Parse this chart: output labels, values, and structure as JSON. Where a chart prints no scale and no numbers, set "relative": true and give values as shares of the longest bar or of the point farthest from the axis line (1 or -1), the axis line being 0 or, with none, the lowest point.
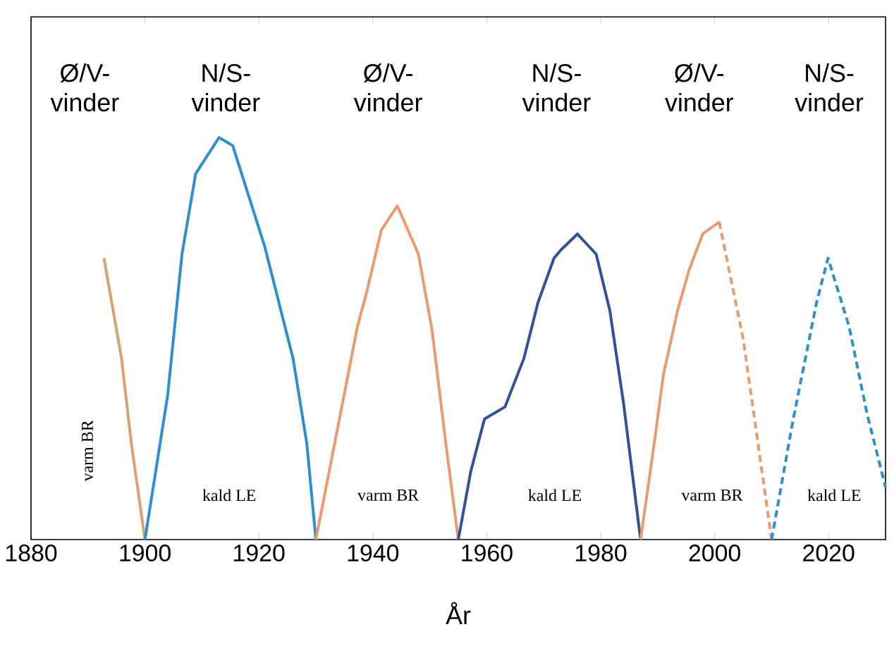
{
  "chart_data": {
    "type": "line",
    "relative": true,
    "xlabel": "År",
    "xlim": [
      1880,
      2030
    ],
    "xticks": [
      1880,
      1900,
      1920,
      1940,
      1960,
      1980,
      2000,
      2020
    ],
    "series": [
      {
        "color": "#d9a070",
        "x": [
          1892.8,
          1895.9,
          1897.6,
          1900
        ],
        "values": [
          0.7,
          0.45,
          0.24,
          0
        ]
      },
      {
        "color": "#2e8fcf",
        "x": [
          1900,
          1904,
          1906.5,
          1908.9,
          1913,
          1915.4,
          1921,
          1926,
          1928.4,
          1930
        ],
        "values": [
          0,
          0.36,
          0.71,
          0.91,
          1.0,
          0.98,
          0.73,
          0.45,
          0.24,
          0
        ]
      },
      {
        "color": "#eb9a6e",
        "x": [
          1930,
          1934,
          1937.3,
          1939,
          1941.5,
          1944.3,
          1948,
          1950.4,
          1952.8,
          1955
        ],
        "values": [
          0,
          0.29,
          0.53,
          0.62,
          0.77,
          0.83,
          0.71,
          0.52,
          0.24,
          0
        ]
      },
      {
        "color": "#34509a",
        "x": [
          1955,
          1957.2,
          1959.6,
          1963.2,
          1966.5,
          1969,
          1971.8,
          1973,
          1975.9,
          1979.2,
          1981.6,
          1984,
          1987
        ],
        "values": [
          0,
          0.17,
          0.3,
          0.33,
          0.45,
          0.59,
          0.7,
          0.72,
          0.76,
          0.71,
          0.57,
          0.34,
          0
        ]
      },
      {
        "color": "#eb9a6e",
        "x": [
          1987,
          1989.4,
          1991,
          1993.5,
          1995.5,
          1997.9,
          2000.8
        ],
        "values": [
          0,
          0.24,
          0.41,
          0.57,
          0.67,
          0.76,
          0.79
        ]
      },
      {
        "color": "#eb9a6e",
        "line_style": "dashed",
        "x": [
          2000.8,
          2005,
          2010
        ],
        "values": [
          0.79,
          0.5,
          0
        ]
      },
      {
        "color": "#2e8fcf",
        "line_style": "dashed",
        "x": [
          2010,
          2013.8,
          2017.9,
          2019.9,
          2023.6,
          2026.8,
          2030
        ],
        "values": [
          0,
          0.3,
          0.59,
          0.7,
          0.53,
          0.31,
          0.13
        ]
      }
    ],
    "annotations": [
      "Ø/V-vinder",
      "N/S-vinder",
      "Ø/V-vinder",
      "N/S-vinder",
      "Ø/V-vinder",
      "N/S-vinder",
      "varm BR",
      "kald LE",
      "varm BR",
      "kald LE",
      "varm BR",
      "kald LE"
    ]
  }
}
